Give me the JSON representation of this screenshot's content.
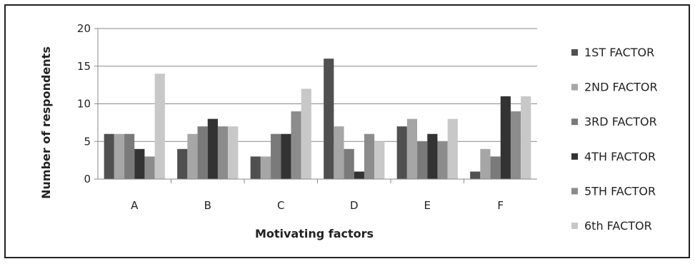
{
  "chart_data": {
    "type": "bar",
    "title": "",
    "xlabel": "Motivating factors",
    "ylabel": "Number of respondents",
    "ylim": [
      0,
      20
    ],
    "yticks": [
      0,
      5,
      10,
      15,
      20
    ],
    "grid": true,
    "legend_position": "right",
    "categories": [
      "A",
      "B",
      "C",
      "D",
      "E",
      "F"
    ],
    "series": [
      {
        "name": "1ST FACTOR",
        "color": "#505050",
        "values": [
          6,
          4,
          3,
          16,
          7,
          1
        ]
      },
      {
        "name": "2ND FACTOR",
        "color": "#a6a6a6",
        "values": [
          6,
          6,
          3,
          7,
          8,
          4
        ]
      },
      {
        "name": "3RD FACTOR",
        "color": "#7a7a7a",
        "values": [
          6,
          7,
          6,
          4,
          5,
          3
        ]
      },
      {
        "name": "4TH FACTOR",
        "color": "#333333",
        "values": [
          4,
          8,
          6,
          1,
          6,
          11
        ]
      },
      {
        "name": "5TH FACTOR",
        "color": "#8c8c8c",
        "values": [
          3,
          7,
          9,
          6,
          5,
          9
        ]
      },
      {
        "name": "6th FACTOR",
        "color": "#c8c8c8",
        "values": [
          14,
          7,
          12,
          5,
          8,
          11
        ]
      }
    ]
  }
}
